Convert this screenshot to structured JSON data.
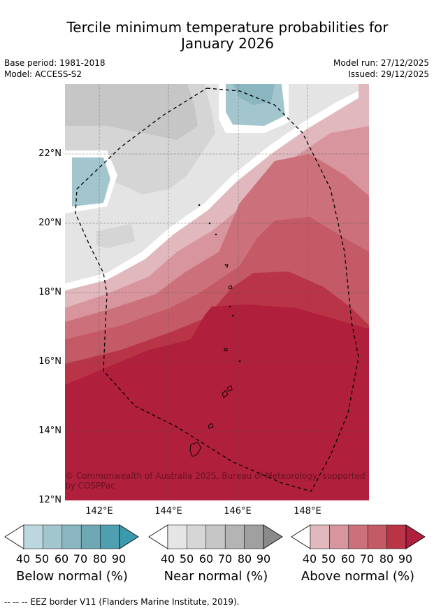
{
  "title_line1": "Tercile minimum temperature probabilities for",
  "title_line2": "January 2026",
  "meta": {
    "base_period": "Base period: 1981-2018",
    "model": "Model: ACCESS-S2",
    "model_run": "Model run: 27/12/2025",
    "issued": "Issued: 29/12/2025"
  },
  "latitude_labels": [
    "22°N",
    "20°N",
    "18°N",
    "16°N",
    "14°N",
    "12°N"
  ],
  "longitude_labels": [
    "142°E",
    "144°E",
    "146°E",
    "148°E"
  ],
  "copyright": "© Commonwealth of Australia 2025, Bureau of Meteorology, supported by COSPPac",
  "colorbars": [
    {
      "label": "Below normal (%)",
      "ticks": [
        "40",
        "50",
        "60",
        "70",
        "80",
        "90"
      ],
      "colors": [
        "#bdd7df",
        "#a3c6ce",
        "#89b6bf",
        "#6ea8b5",
        "#4ea0b0",
        "#3b9aad"
      ]
    },
    {
      "label": "Near normal (%)",
      "ticks": [
        "40",
        "50",
        "60",
        "70",
        "80",
        "90"
      ],
      "colors": [
        "#e5e5e5",
        "#d6d6d6",
        "#c6c6c6",
        "#b4b4b4",
        "#a0a0a0",
        "#8a8a8a"
      ]
    },
    {
      "label": "Above normal (%)",
      "ticks": [
        "40",
        "50",
        "60",
        "70",
        "80",
        "90"
      ],
      "colors": [
        "#e1b8be",
        "#d8959d",
        "#cc717b",
        "#c45a65",
        "#b83446",
        "#b01f3c"
      ]
    }
  ],
  "eez_note": "--  --  -- EEZ border V11 (Flanders Marine Institute, 2019)."
}
